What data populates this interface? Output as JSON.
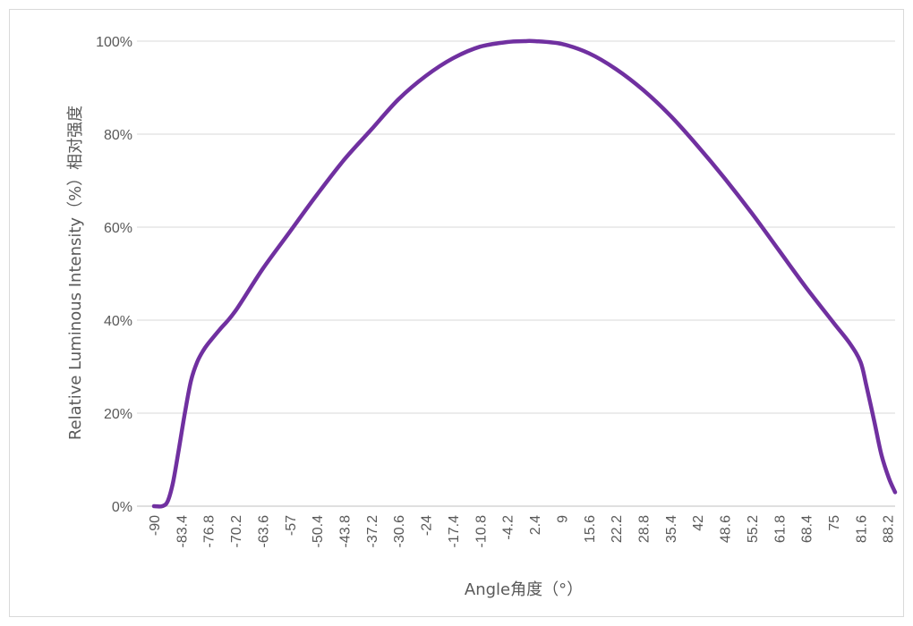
{
  "chart_data": {
    "type": "line",
    "title": "",
    "xlabel": "Angle角度（°）",
    "ylabel": "Relative Luminous Intensity（%）相对强度",
    "ylim": [
      0,
      100
    ],
    "y_ticks": [
      "0%",
      "20%",
      "40%",
      "60%",
      "80%",
      "100%"
    ],
    "x_ticks": [
      "-90",
      "-83.4",
      "-76.8",
      "-70.2",
      "-63.6",
      "-57",
      "-50.4",
      "-43.8",
      "-37.2",
      "-30.6",
      "-24",
      "-17.4",
      "-10.8",
      "-4.2",
      "2.4",
      "9",
      "15.6",
      "22.2",
      "28.8",
      "35.4",
      "42",
      "48.6",
      "55.2",
      "61.8",
      "68.4",
      "75",
      "81.6",
      "88.2"
    ],
    "grid": "horizontal",
    "legend": "none",
    "series": [
      {
        "color": "#7030a0",
        "x": [
          -90,
          -88,
          -86.7,
          -85.4,
          -84,
          -82.5,
          -81,
          -79.5,
          -78,
          -76.8,
          -74,
          -70.2,
          -63.6,
          -57,
          -50.4,
          -43.8,
          -37.2,
          -30.6,
          -24,
          -17.4,
          -10.8,
          -4.2,
          0,
          2.4,
          9,
          15.6,
          22.2,
          28.8,
          35.4,
          42,
          48.6,
          55.2,
          61.8,
          68.4,
          75,
          79,
          81.6,
          83,
          85,
          86.7,
          88.5,
          90
        ],
        "y": [
          0,
          0,
          1,
          5,
          12,
          20,
          27,
          31,
          33.5,
          35,
          38,
          42,
          51,
          59,
          67,
          74.5,
          81,
          87.5,
          92.5,
          96.3,
          98.8,
          99.8,
          100,
          100,
          99.4,
          97.4,
          94,
          89.5,
          84,
          77.5,
          70.5,
          63,
          55,
          47,
          39.5,
          35,
          31,
          26,
          18,
          11,
          6,
          3
        ]
      }
    ]
  }
}
